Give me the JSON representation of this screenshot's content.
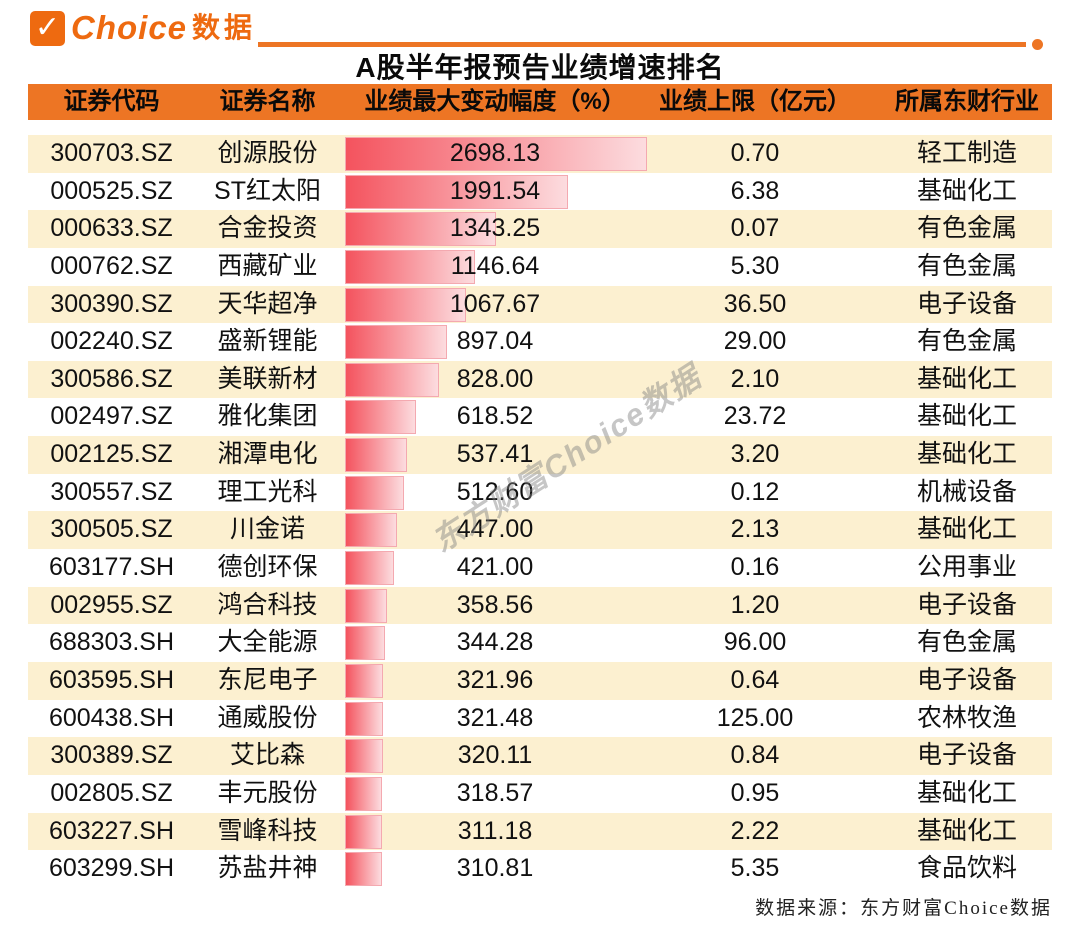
{
  "brand": {
    "check_icon": "✓",
    "name": "Choice",
    "suffix": "数据"
  },
  "title": "A股半年报预告业绩增速排名",
  "watermark": "东方财富Choice数据",
  "footer": "数据来源：东方财富Choice数据",
  "colors": {
    "accent_orange": "#ed7524",
    "logo_orange": "#ee6a10",
    "row_stripe": "#fcf0d0",
    "bar_gradient_start": "#f4535e",
    "bar_gradient_end": "#fcdcdf",
    "bar_border": "#f4a9b0",
    "watermark_gray": "#808080"
  },
  "table": {
    "columns": [
      "证券代码",
      "证券名称",
      "业绩最大变动幅度（%）",
      "业绩上限（亿元）",
      "所属东财行业"
    ],
    "rows": [
      {
        "code": "300703.SZ",
        "name": "创源股份",
        "change": "2698.13",
        "cap": "0.70",
        "industry": "轻工制造"
      },
      {
        "code": "000525.SZ",
        "name": "ST红太阳",
        "change": "1991.54",
        "cap": "6.38",
        "industry": "基础化工"
      },
      {
        "code": "000633.SZ",
        "name": "合金投资",
        "change": "1343.25",
        "cap": "0.07",
        "industry": "有色金属"
      },
      {
        "code": "000762.SZ",
        "name": "西藏矿业",
        "change": "1146.64",
        "cap": "5.30",
        "industry": "有色金属"
      },
      {
        "code": "300390.SZ",
        "name": "天华超净",
        "change": "1067.67",
        "cap": "36.50",
        "industry": "电子设备"
      },
      {
        "code": "002240.SZ",
        "name": "盛新锂能",
        "change": "897.04",
        "cap": "29.00",
        "industry": "有色金属"
      },
      {
        "code": "300586.SZ",
        "name": "美联新材",
        "change": "828.00",
        "cap": "2.10",
        "industry": "基础化工"
      },
      {
        "code": "002497.SZ",
        "name": "雅化集团",
        "change": "618.52",
        "cap": "23.72",
        "industry": "基础化工"
      },
      {
        "code": "002125.SZ",
        "name": "湘潭电化",
        "change": "537.41",
        "cap": "3.20",
        "industry": "基础化工"
      },
      {
        "code": "300557.SZ",
        "name": "理工光科",
        "change": "512.60",
        "cap": "0.12",
        "industry": "机械设备"
      },
      {
        "code": "300505.SZ",
        "name": "川金诺",
        "change": "447.00",
        "cap": "2.13",
        "industry": "基础化工"
      },
      {
        "code": "603177.SH",
        "name": "德创环保",
        "change": "421.00",
        "cap": "0.16",
        "industry": "公用事业"
      },
      {
        "code": "002955.SZ",
        "name": "鸿合科技",
        "change": "358.56",
        "cap": "1.20",
        "industry": "电子设备"
      },
      {
        "code": "688303.SH",
        "name": "大全能源",
        "change": "344.28",
        "cap": "96.00",
        "industry": "有色金属"
      },
      {
        "code": "603595.SH",
        "name": "东尼电子",
        "change": "321.96",
        "cap": "0.64",
        "industry": "电子设备"
      },
      {
        "code": "600438.SH",
        "name": "通威股份",
        "change": "321.48",
        "cap": "125.00",
        "industry": "农林牧渔"
      },
      {
        "code": "300389.SZ",
        "name": "艾比森",
        "change": "320.11",
        "cap": "0.84",
        "industry": "电子设备"
      },
      {
        "code": "002805.SZ",
        "name": "丰元股份",
        "change": "318.57",
        "cap": "0.95",
        "industry": "基础化工"
      },
      {
        "code": "603227.SH",
        "name": "雪峰科技",
        "change": "311.18",
        "cap": "2.22",
        "industry": "基础化工"
      },
      {
        "code": "603299.SH",
        "name": "苏盐井神",
        "change": "310.81",
        "cap": "5.35",
        "industry": "食品饮料"
      }
    ]
  },
  "chart_data": {
    "type": "bar",
    "orientation": "horizontal",
    "title": "A股半年报预告业绩增速排名",
    "xlabel": "业绩最大变动幅度（%）",
    "ylabel": "证券名称",
    "xlim": [
      0,
      2698.13
    ],
    "grid": false,
    "legend": "none",
    "categories": [
      "创源股份",
      "ST红太阳",
      "合金投资",
      "西藏矿业",
      "天华超净",
      "盛新锂能",
      "美联新材",
      "雅化集团",
      "湘潭电化",
      "理工光科",
      "川金诺",
      "德创环保",
      "鸿合科技",
      "大全能源",
      "东尼电子",
      "通威股份",
      "艾比森",
      "丰元股份",
      "雪峰科技",
      "苏盐井神"
    ],
    "values": [
      2698.13,
      1991.54,
      1343.25,
      1146.64,
      1067.67,
      897.04,
      828.0,
      618.52,
      537.41,
      512.6,
      447.0,
      421.0,
      358.56,
      344.28,
      321.96,
      321.48,
      320.11,
      318.57,
      311.18,
      310.81
    ],
    "series": [
      {
        "name": "业绩上限（亿元）",
        "values": [
          0.7,
          6.38,
          0.07,
          5.3,
          36.5,
          29.0,
          2.1,
          23.72,
          3.2,
          0.12,
          2.13,
          0.16,
          1.2,
          96.0,
          0.64,
          125.0,
          0.84,
          0.95,
          2.22,
          5.35
        ]
      }
    ]
  }
}
